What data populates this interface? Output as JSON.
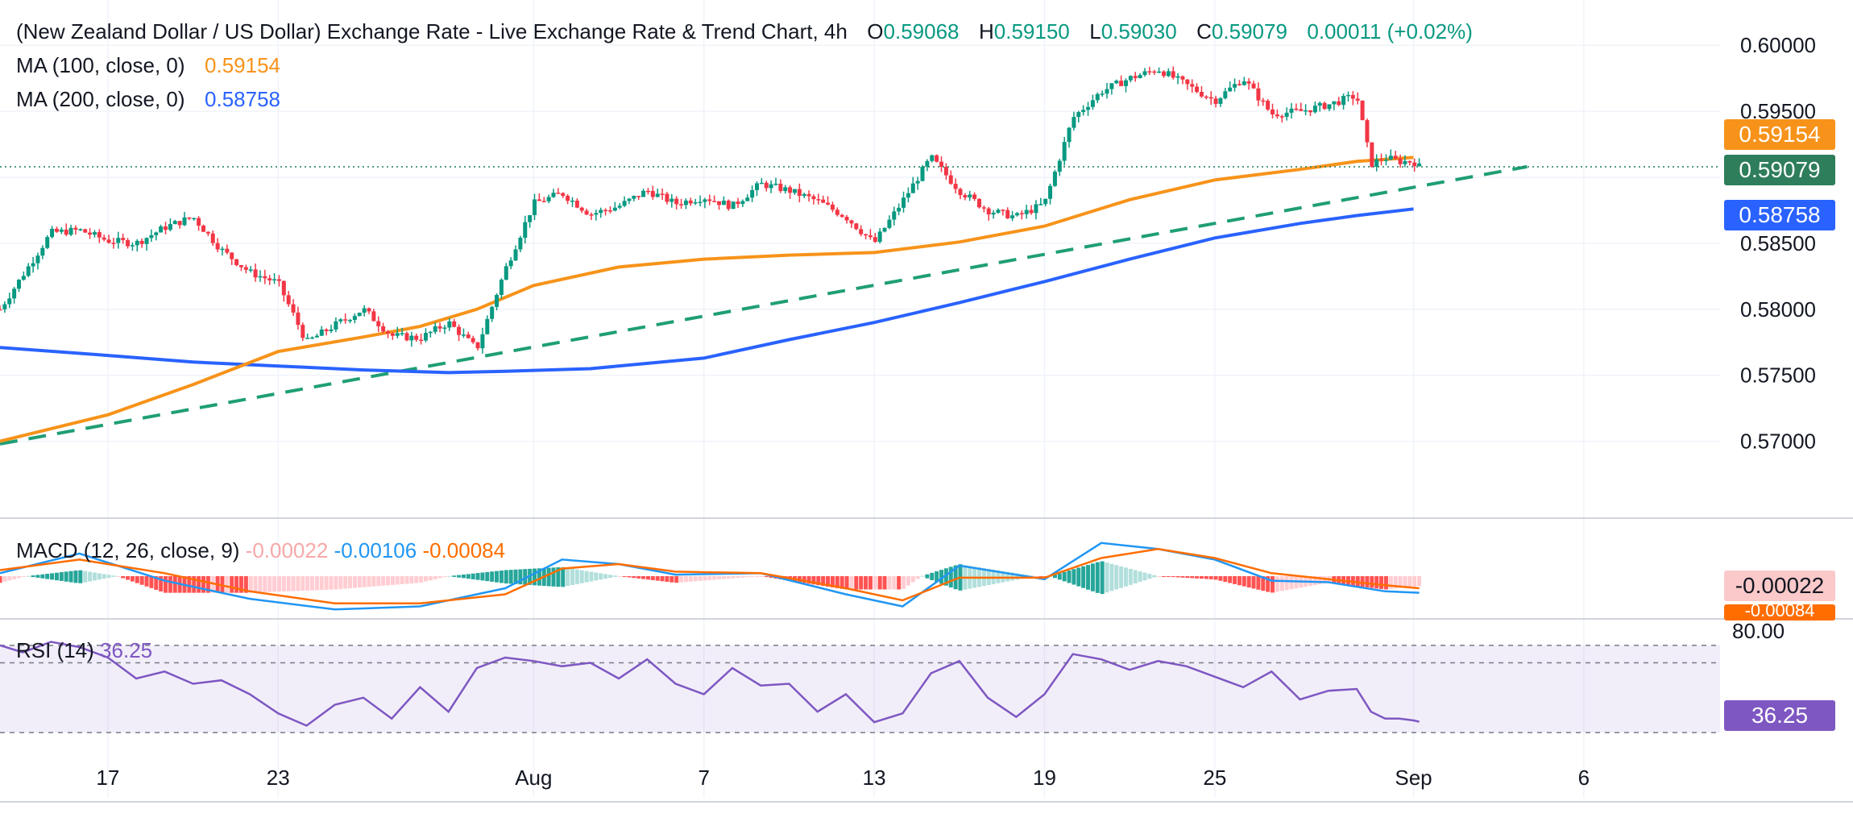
{
  "header": {
    "title": "(New Zealand Dollar / US Dollar) Exchange Rate - Live Exchange Rate & Trend Chart, 4h",
    "o_label": "O",
    "o_value": "0.59068",
    "h_label": "H",
    "h_value": "0.59150",
    "l_label": "L",
    "l_value": "0.59030",
    "c_label": "C",
    "c_value": "0.59079",
    "change": "0.00011 (+0.02%)"
  },
  "ma100": {
    "label": "MA (100, close, 0)",
    "value": "0.59154",
    "color": "#f7931a"
  },
  "ma200": {
    "label": "MA (200, close, 0)",
    "value": "0.58758",
    "color": "#2962ff"
  },
  "last_price": {
    "value": "0.59079",
    "color": "#26a69a"
  },
  "macd": {
    "label": "MACD (12, 26, close, 9)",
    "hist": "-0.00022",
    "macd": "-0.00106",
    "signal": "-0.00084",
    "hist_tag": "-0.00022",
    "signal_tag": "-0.00084"
  },
  "rsi": {
    "label": "RSI (14)",
    "value": "36.25",
    "tag": "36.25",
    "upper_level": "80.00"
  },
  "chart_data": {
    "type": "line",
    "title": "(New Zealand Dollar / US Dollar) Exchange Rate - Live Exchange Rate & Trend Chart, 4h",
    "y_ticks": [
      "0.60000",
      "0.59500",
      "0.59000",
      "0.58500",
      "0.58000",
      "0.57500",
      "0.57000"
    ],
    "ylim": [
      0.5668,
      0.6016
    ],
    "x_ticks": [
      "17",
      "23",
      "Aug",
      "7",
      "13",
      "19",
      "25",
      "Sep",
      "6"
    ],
    "x_tick_days": [
      17,
      23,
      32,
      38,
      44,
      50,
      56,
      63,
      69
    ],
    "xlim_days": [
      13.2,
      73.8
    ],
    "price_x_days": [
      13.2,
      15,
      16,
      17,
      18,
      19,
      20,
      21,
      22,
      23,
      24,
      25,
      26,
      27,
      28,
      29,
      30,
      31,
      32,
      33,
      34,
      35,
      36,
      37,
      38,
      39,
      40,
      41,
      42,
      43,
      44,
      45,
      46,
      47,
      48,
      49,
      50,
      51,
      52,
      53,
      54,
      55,
      56,
      57,
      58,
      59,
      60,
      61,
      61.5,
      62,
      62.5,
      63,
      63.2
    ],
    "price_y": [
      0.58,
      0.5858,
      0.586,
      0.5852,
      0.585,
      0.5862,
      0.587,
      0.5845,
      0.5828,
      0.582,
      0.5775,
      0.5788,
      0.58,
      0.578,
      0.5778,
      0.579,
      0.577,
      0.583,
      0.588,
      0.5888,
      0.5872,
      0.5878,
      0.589,
      0.588,
      0.5885,
      0.5878,
      0.5895,
      0.589,
      0.5882,
      0.587,
      0.585,
      0.5882,
      0.5915,
      0.589,
      0.5875,
      0.587,
      0.588,
      0.5945,
      0.5965,
      0.5975,
      0.5982,
      0.597,
      0.5958,
      0.5975,
      0.5948,
      0.595,
      0.5955,
      0.5962,
      0.591,
      0.5915,
      0.5912,
      0.5912,
      0.5908
    ],
    "series": [
      {
        "name": "MA (100, close, 0)",
        "x": [
          13.2,
          17,
          20,
          23,
          26,
          28,
          30,
          32,
          35,
          38,
          41,
          44,
          47,
          50,
          53,
          56,
          59,
          61,
          63
        ],
        "y": [
          0.57,
          0.572,
          0.5743,
          0.5768,
          0.5779,
          0.5787,
          0.58,
          0.5818,
          0.5832,
          0.5838,
          0.5841,
          0.5843,
          0.5851,
          0.5863,
          0.5883,
          0.5898,
          0.5906,
          0.5912,
          0.5915
        ]
      },
      {
        "name": "MA (200, close, 0)",
        "x": [
          13.2,
          17,
          20,
          23,
          26,
          29,
          31,
          34,
          38,
          41,
          44,
          47,
          50,
          53,
          56,
          59,
          61,
          63
        ],
        "y": [
          0.5771,
          0.5765,
          0.576,
          0.5757,
          0.5754,
          0.5752,
          0.5753,
          0.5755,
          0.5763,
          0.5777,
          0.579,
          0.5805,
          0.5821,
          0.5838,
          0.5854,
          0.5865,
          0.5871,
          0.5876
        ]
      },
      {
        "name": "trendline",
        "x": [
          13.2,
          67
        ],
        "y": [
          0.5698,
          0.5908
        ]
      }
    ],
    "macd_zero": 0,
    "macd_ylim": [
      -0.0032,
      0.0032
    ],
    "macd_line": {
      "x": [
        13.2,
        16,
        19,
        22,
        25,
        28,
        31,
        33,
        35,
        37,
        40,
        43,
        45,
        47,
        50,
        52,
        54,
        56,
        58,
        60,
        62,
        63.2
      ],
      "y": [
        0.0002,
        0.0015,
        -0.0003,
        -0.0015,
        -0.0022,
        -0.002,
        -0.0008,
        0.0011,
        0.0008,
        0.0001,
        0.0002,
        -0.0012,
        -0.002,
        0.0007,
        -0.0002,
        0.0022,
        0.0018,
        0.0011,
        -0.0003,
        -0.0004,
        -0.001,
        -0.0011
      ]
    },
    "signal_line": {
      "x": [
        13.2,
        16,
        19,
        22,
        25,
        28,
        31,
        33,
        35,
        37,
        40,
        43,
        45,
        47,
        50,
        52,
        54,
        56,
        58,
        60,
        62,
        63.2
      ],
      "y": [
        0.0004,
        0.0011,
        0.0002,
        -0.001,
        -0.0018,
        -0.0018,
        -0.0012,
        0.0005,
        0.0008,
        0.0003,
        0.0002,
        -0.0008,
        -0.0016,
        -0.0001,
        -0.0001,
        0.0012,
        0.0018,
        0.0012,
        0.0002,
        -0.0002,
        -0.0006,
        -0.0008
      ]
    },
    "rsi_ylim": [
      25,
      85
    ],
    "rsi_levels": [
      80,
      70,
      30
    ],
    "rsi_line": {
      "x": [
        13.2,
        14,
        15,
        16,
        17,
        18,
        19,
        20,
        21,
        22,
        23,
        24,
        25,
        26,
        27,
        28,
        29,
        30,
        31,
        32,
        33,
        34,
        35,
        36,
        37,
        38,
        39,
        40,
        41,
        42,
        43,
        44,
        45,
        46,
        47,
        48,
        49,
        50,
        51,
        52,
        53,
        54,
        55,
        56,
        57,
        58,
        59,
        60,
        61,
        61.5,
        62,
        62.5,
        63,
        63.2
      ],
      "y": [
        80,
        76,
        82,
        79,
        73,
        61,
        65,
        58,
        60,
        52,
        41,
        34,
        46,
        50,
        38,
        56,
        42,
        67,
        73,
        71,
        68,
        70,
        61,
        72,
        58,
        52,
        67,
        57,
        58,
        42,
        52,
        36,
        41,
        64,
        71,
        50,
        39,
        52,
        75,
        72,
        66,
        71,
        68,
        62,
        56,
        65,
        49,
        54,
        55,
        42,
        38,
        38,
        37,
        36.25
      ]
    }
  }
}
